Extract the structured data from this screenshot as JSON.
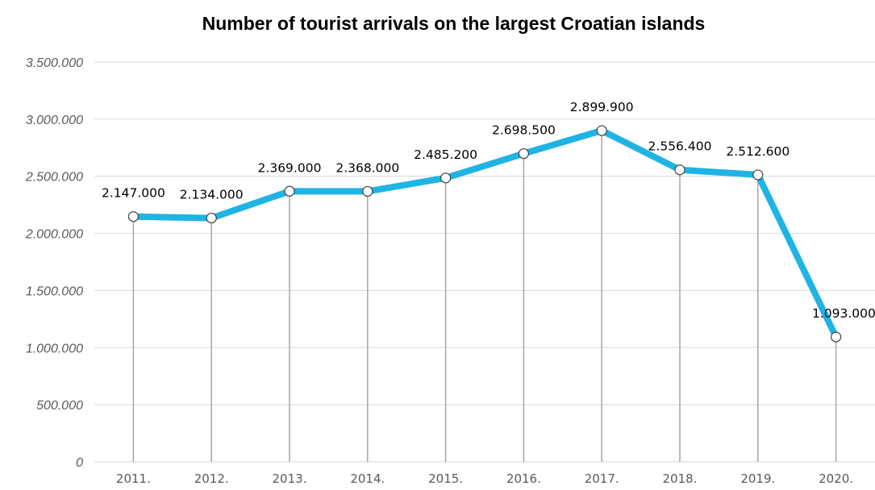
{
  "chart_data": {
    "type": "line",
    "title": "Number of tourist arrivals on the largest Croatian islands",
    "xlabel": "",
    "ylabel": "",
    "categories": [
      "2011.",
      "2012.",
      "2013.",
      "2014.",
      "2015.",
      "2016.",
      "2017.",
      "2018.",
      "2019.",
      "2020."
    ],
    "series": [
      {
        "values": [
          2147000,
          2134000,
          2369000,
          2368000,
          2485200,
          2698500,
          2899900,
          2556400,
          2512600,
          1093000
        ],
        "labels": [
          "2.147.000",
          "2.134.000",
          "2.369.000",
          "2.368.000",
          "2.485.200",
          "2.698.500",
          "2.899.900",
          "2.556.400",
          "2.512.600",
          "1.093.000"
        ]
      }
    ],
    "ylim": [
      0,
      3500000
    ],
    "yticks": [
      0,
      500000,
      1000000,
      1500000,
      2000000,
      2500000,
      3000000,
      3500000
    ],
    "ytick_labels": [
      "0",
      "500.000",
      "1.000.000",
      "1.500.000",
      "2.000.000",
      "2.500.000",
      "3.000.000",
      "3.500.000"
    ],
    "grid": true,
    "drop_lines": true,
    "colors": {
      "line": "#1fb4e4",
      "grid": "#d9d9d9",
      "drop_line": "#a6a6a6",
      "marker_fill": "#ffffff",
      "marker_stroke": "#404040"
    }
  }
}
